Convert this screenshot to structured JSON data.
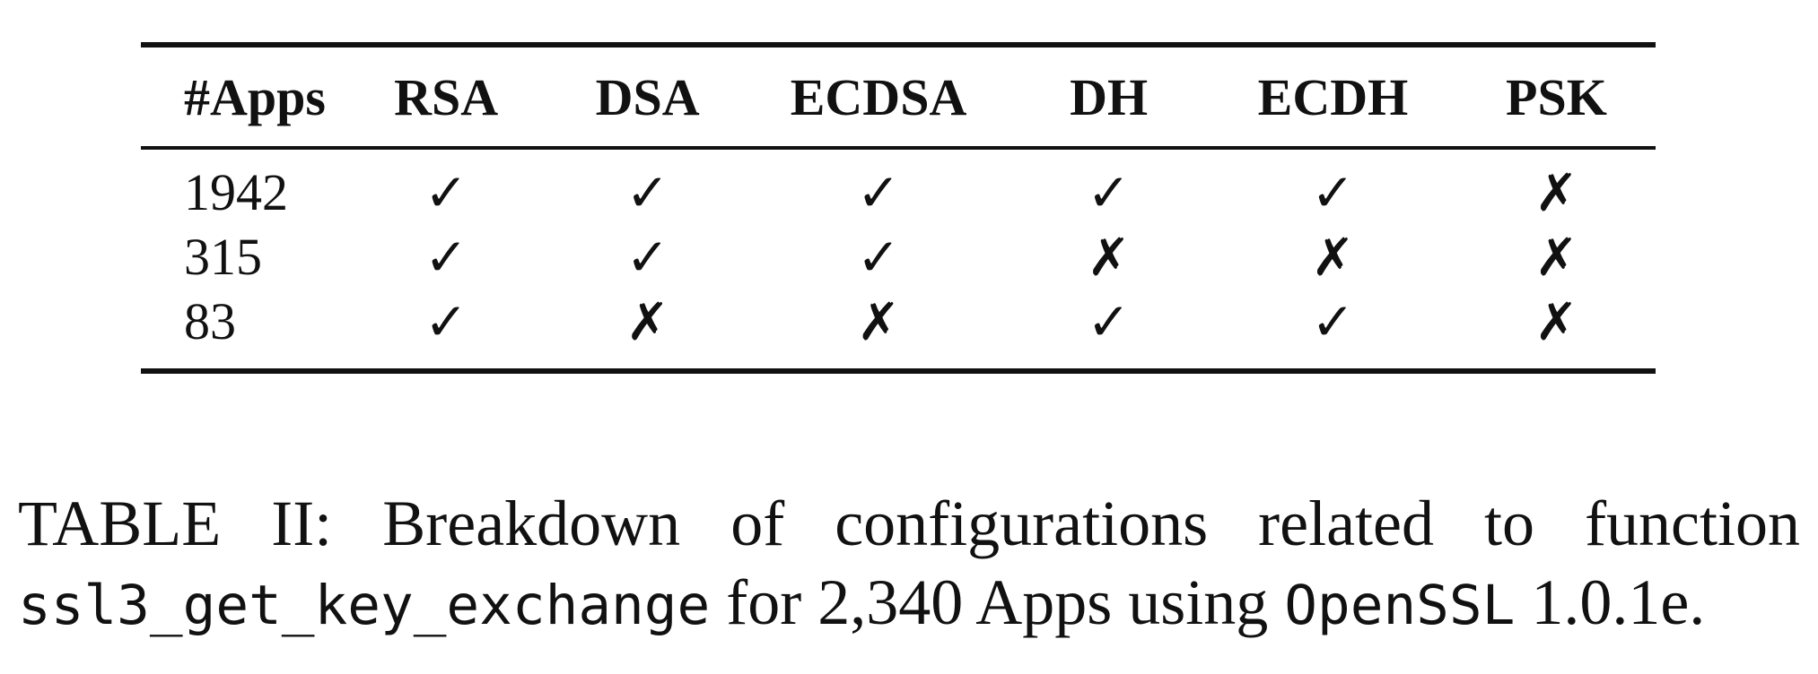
{
  "table": {
    "columns": [
      "#Apps",
      "RSA",
      "DSA",
      "ECDSA",
      "DH",
      "ECDH",
      "PSK"
    ],
    "rows": [
      {
        "apps": "1942",
        "marks": [
          "✓",
          "✓",
          "✓",
          "✓",
          "✓",
          "✗"
        ]
      },
      {
        "apps": "315",
        "marks": [
          "✓",
          "✓",
          "✓",
          "✗",
          "✗",
          "✗"
        ]
      },
      {
        "apps": "83",
        "marks": [
          "✓",
          "✗",
          "✗",
          "✓",
          "✓",
          "✗"
        ]
      }
    ]
  },
  "caption": {
    "label": "TABLE II:",
    "text_1": "Breakdown of configurations related to function",
    "code_1": "ssl3_get_key_exchange",
    "text_2": "for 2,340 Apps using",
    "code_2": "OpenSSL",
    "text_3": "1.0.1e."
  }
}
